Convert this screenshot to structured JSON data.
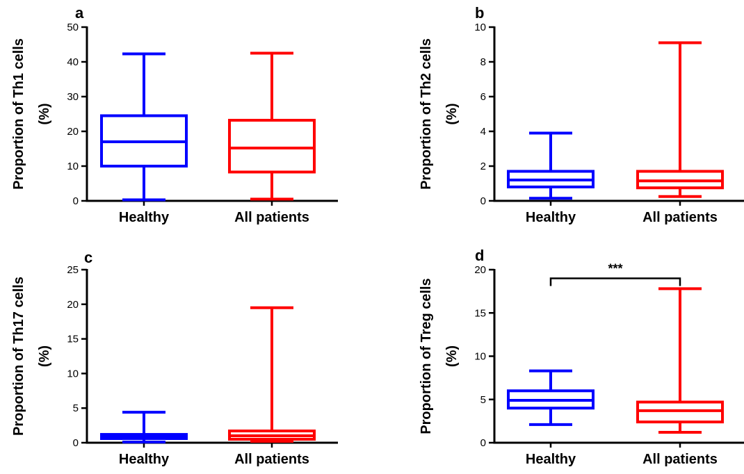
{
  "chart_data": [
    {
      "type": "box",
      "panel": "a",
      "ylabel": "Proportion of Th1 cells",
      "ylabel_unit": "(%)",
      "ylim": [
        0,
        50
      ],
      "yticks": [
        0,
        10,
        20,
        30,
        40,
        50
      ],
      "categories": [
        "Healthy",
        "All patients"
      ],
      "colors": [
        "#0000ff",
        "#ff0000"
      ],
      "boxes": [
        {
          "min": 0.3,
          "q1": 10,
          "median": 17,
          "q3": 24.5,
          "max": 42.3
        },
        {
          "min": 0.5,
          "q1": 8.3,
          "median": 15.2,
          "q3": 23.2,
          "max": 42.5
        }
      ]
    },
    {
      "type": "box",
      "panel": "b",
      "ylabel": "Proportion of Th2 cells",
      "ylabel_unit": "(%)",
      "ylim": [
        0,
        10
      ],
      "yticks": [
        0,
        2,
        4,
        6,
        8,
        10
      ],
      "categories": [
        "Healthy",
        "All patients"
      ],
      "colors": [
        "#0000ff",
        "#ff0000"
      ],
      "boxes": [
        {
          "min": 0.15,
          "q1": 0.8,
          "median": 1.2,
          "q3": 1.7,
          "max": 3.9
        },
        {
          "min": 0.25,
          "q1": 0.75,
          "median": 1.15,
          "q3": 1.7,
          "max": 9.1
        }
      ]
    },
    {
      "type": "box",
      "panel": "c",
      "ylabel": "Proportion of Th17 cells",
      "ylabel_unit": "(%)",
      "ylim": [
        0,
        25
      ],
      "yticks": [
        0,
        5,
        10,
        15,
        20,
        25
      ],
      "categories": [
        "Healthy",
        "All patients"
      ],
      "colors": [
        "#0000ff",
        "#ff0000"
      ],
      "boxes": [
        {
          "min": 0.1,
          "q1": 0.6,
          "median": 0.9,
          "q3": 1.2,
          "max": 4.4
        },
        {
          "min": 0.2,
          "q1": 0.5,
          "median": 1.0,
          "q3": 1.7,
          "max": 19.5
        }
      ]
    },
    {
      "type": "box",
      "panel": "d",
      "ylabel": "Proportion of Treg cells",
      "ylabel_unit": "(%)",
      "ylim": [
        0,
        20
      ],
      "yticks": [
        0,
        5,
        10,
        15,
        20
      ],
      "categories": [
        "Healthy",
        "All patients"
      ],
      "colors": [
        "#0000ff",
        "#ff0000"
      ],
      "boxes": [
        {
          "min": 2.1,
          "q1": 4.0,
          "median": 4.9,
          "q3": 6.0,
          "max": 8.3
        },
        {
          "min": 1.2,
          "q1": 2.4,
          "median": 3.7,
          "q3": 4.7,
          "max": 17.8
        }
      ],
      "significance": {
        "label": "***",
        "between": [
          0,
          1
        ],
        "y": 19
      }
    }
  ]
}
